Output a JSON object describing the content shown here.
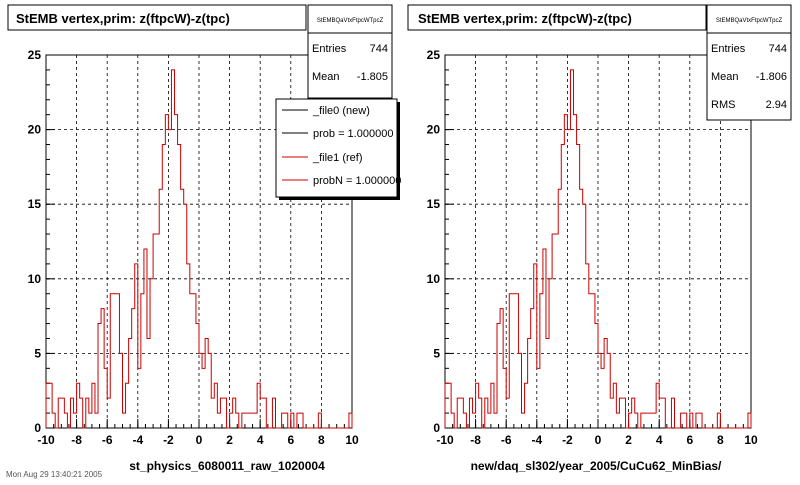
{
  "canvas_bg": "#ffffff",
  "hist_color": "#cc0000",
  "footer_text": "Mon Aug 29 13:40:21 2005",
  "chart_data": [
    {
      "type": "histogram",
      "title": "StEMB  vertex,prim: z(ftpcW)-z(tpc)",
      "xlabel": "st_physics_6080011_raw_1020004",
      "ylabel": "",
      "xlim": [
        -10,
        10
      ],
      "ylim": [
        0,
        25
      ],
      "grid": true,
      "x_ticks": [
        "-10",
        "-8",
        "-6",
        "-4",
        "-2",
        "0",
        "2",
        "4",
        "6",
        "8",
        "10"
      ],
      "y_ticks": [
        "0",
        "5",
        "10",
        "15",
        "20",
        "25"
      ],
      "bin_edges": {
        "start": -10,
        "width": 0.2
      },
      "counts": [
        3,
        3,
        1,
        0,
        2,
        2,
        1,
        0,
        2,
        1,
        3,
        2,
        0,
        2,
        1,
        3,
        1,
        7,
        8,
        4,
        2,
        9,
        9,
        9,
        5,
        1,
        3,
        6,
        8,
        11,
        4,
        9,
        12,
        6,
        10,
        13,
        13,
        16,
        19,
        21,
        20,
        24,
        21,
        19,
        16,
        15,
        11,
        9,
        9,
        7,
        5,
        4,
        6,
        5,
        2,
        3,
        1,
        2,
        2,
        0,
        1,
        2,
        1,
        0,
        1,
        1,
        1,
        1,
        1,
        3,
        2,
        2,
        0,
        0,
        2,
        0,
        0,
        1,
        1,
        0,
        1,
        0,
        1,
        1,
        0,
        0,
        0,
        0,
        0,
        1,
        0,
        0,
        0,
        0,
        0,
        0,
        0,
        0,
        0,
        1
      ],
      "stats": {
        "name": "StEMBQaVtxFtpcWTpcZ",
        "entries_label": "Entries",
        "entries": "744",
        "mean_label": "Mean",
        "mean": "-1.805"
      },
      "legend": {
        "placement": "top-right",
        "entries": [
          {
            "label": "_file0 (new)",
            "color": "#000000"
          },
          {
            "label": "prob = 1.000000",
            "color": "#000000"
          },
          {
            "label": "_file1 (ref)",
            "color": "#cc0000"
          },
          {
            "label": "probN = 1.000000",
            "color": "#cc0000"
          }
        ]
      }
    },
    {
      "type": "histogram",
      "title": "StEMB  vertex,prim: z(ftpcW)-z(tpc)",
      "xlabel": "new/daq_sl302/year_2005/CuCu62_MinBias/",
      "ylabel": "",
      "xlim": [
        -10,
        10
      ],
      "ylim": [
        0,
        25
      ],
      "grid": true,
      "x_ticks": [
        "-10",
        "-8",
        "-6",
        "-4",
        "-2",
        "0",
        "2",
        "4",
        "6",
        "8",
        "10"
      ],
      "y_ticks": [
        "0",
        "5",
        "10",
        "15",
        "20",
        "25"
      ],
      "bin_edges": {
        "start": -10,
        "width": 0.2
      },
      "counts": [
        3,
        3,
        1,
        0,
        2,
        2,
        1,
        0,
        2,
        1,
        3,
        2,
        0,
        2,
        1,
        3,
        1,
        7,
        8,
        4,
        2,
        9,
        9,
        9,
        5,
        1,
        3,
        6,
        8,
        11,
        4,
        9,
        12,
        6,
        10,
        13,
        13,
        16,
        19,
        21,
        20,
        24,
        21,
        19,
        16,
        15,
        11,
        9,
        9,
        7,
        5,
        4,
        6,
        5,
        2,
        3,
        1,
        2,
        2,
        0,
        1,
        2,
        1,
        0,
        1,
        1,
        1,
        1,
        1,
        3,
        2,
        2,
        0,
        0,
        2,
        0,
        0,
        1,
        1,
        0,
        1,
        0,
        1,
        1,
        0,
        0,
        0,
        0,
        0,
        1,
        0,
        0,
        0,
        0,
        0,
        0,
        0,
        0,
        0,
        1
      ],
      "stats": {
        "name": "StEMBQaVtxFtpcWTpcZ",
        "entries_label": "Entries",
        "entries": "744",
        "mean_label": "Mean",
        "mean": "-1.806",
        "rms_label": "RMS",
        "rms": "2.94"
      }
    }
  ]
}
